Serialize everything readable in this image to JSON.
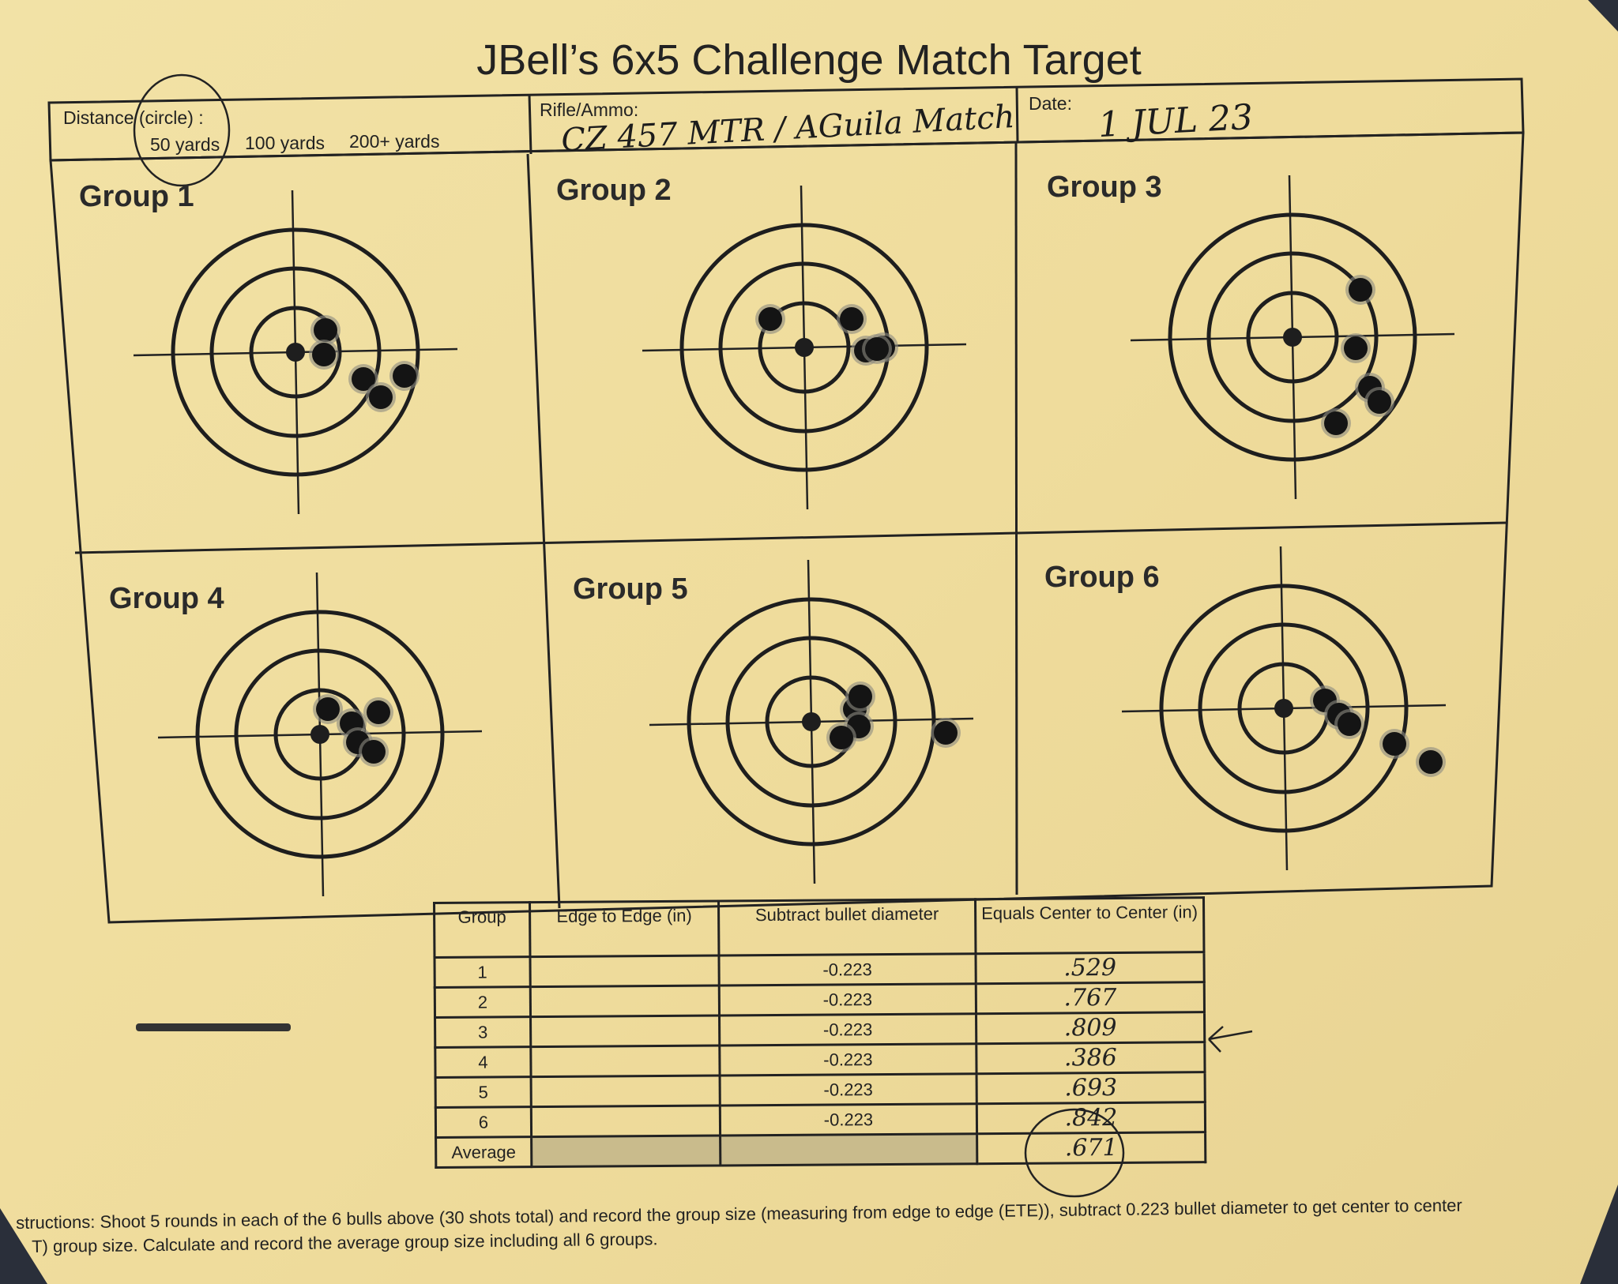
{
  "title": "JBell’s 6x5 Challenge Match Target",
  "header": {
    "distance_label": "Distance (circle) :",
    "distance_options": [
      "50 yards",
      "100 yards",
      "200+ yards"
    ],
    "distance_selected": "50 yards",
    "rifle_label": "Rifle/Ammo:",
    "rifle_value": "CZ 457 MTR / AGuila Match",
    "date_label": "Date:",
    "date_value": "1 JUL 23"
  },
  "groups": [
    "Group 1",
    "Group 2",
    "Group 3",
    "Group 4",
    "Group 5",
    "Group 6"
  ],
  "table": {
    "headers": [
      "Group",
      "Edge to Edge (in)",
      "Subtract bullet diameter",
      "Equals Center to Center (in)"
    ],
    "rows": [
      {
        "group": "1",
        "ete": "",
        "subtract": "-0.223",
        "ctc": ".529"
      },
      {
        "group": "2",
        "ete": "",
        "subtract": "-0.223",
        "ctc": ".767"
      },
      {
        "group": "3",
        "ete": "",
        "subtract": "-0.223",
        "ctc": ".809"
      },
      {
        "group": "4",
        "ete": "",
        "subtract": "-0.223",
        "ctc": ".386"
      },
      {
        "group": "5",
        "ete": "",
        "subtract": "-0.223",
        "ctc": ".693"
      },
      {
        "group": "6",
        "ete": "",
        "subtract": "-0.223",
        "ctc": ".842"
      }
    ],
    "average_label": "Average",
    "average_value": ".671"
  },
  "instructions": [
    "structions: Shoot 5 rounds in each of the 6 bulls above (30 shots total) and record the group size (measuring from edge to edge (ETE)), subtract 0.223 bullet diameter to get center to center",
    "T) group size. Calculate and record the average group size including all 6 groups."
  ],
  "colors": {
    "paper": "#efdc9c",
    "ink": "#222222"
  }
}
